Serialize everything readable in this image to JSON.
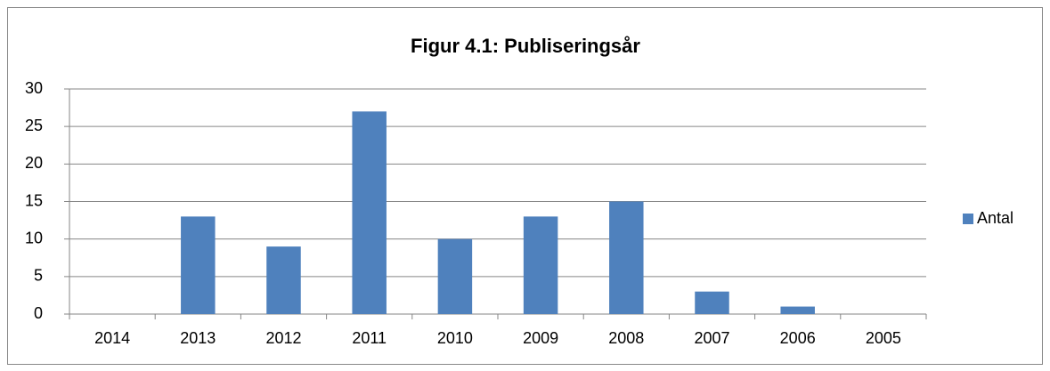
{
  "chart_data": {
    "type": "bar",
    "title": "Figur 4.1: Publiseringsår",
    "categories": [
      "2014",
      "2013",
      "2012",
      "2011",
      "2010",
      "2009",
      "2008",
      "2007",
      "2006",
      "2005"
    ],
    "series": [
      {
        "name": "Antal",
        "color": "#4f81bd",
        "values": [
          0,
          13,
          9,
          27,
          10,
          13,
          15,
          3,
          1,
          0
        ]
      }
    ],
    "ylim": [
      0,
      30
    ],
    "yticks": [
      0,
      5,
      10,
      15,
      20,
      25,
      30
    ],
    "grid": true,
    "legend": "right"
  }
}
